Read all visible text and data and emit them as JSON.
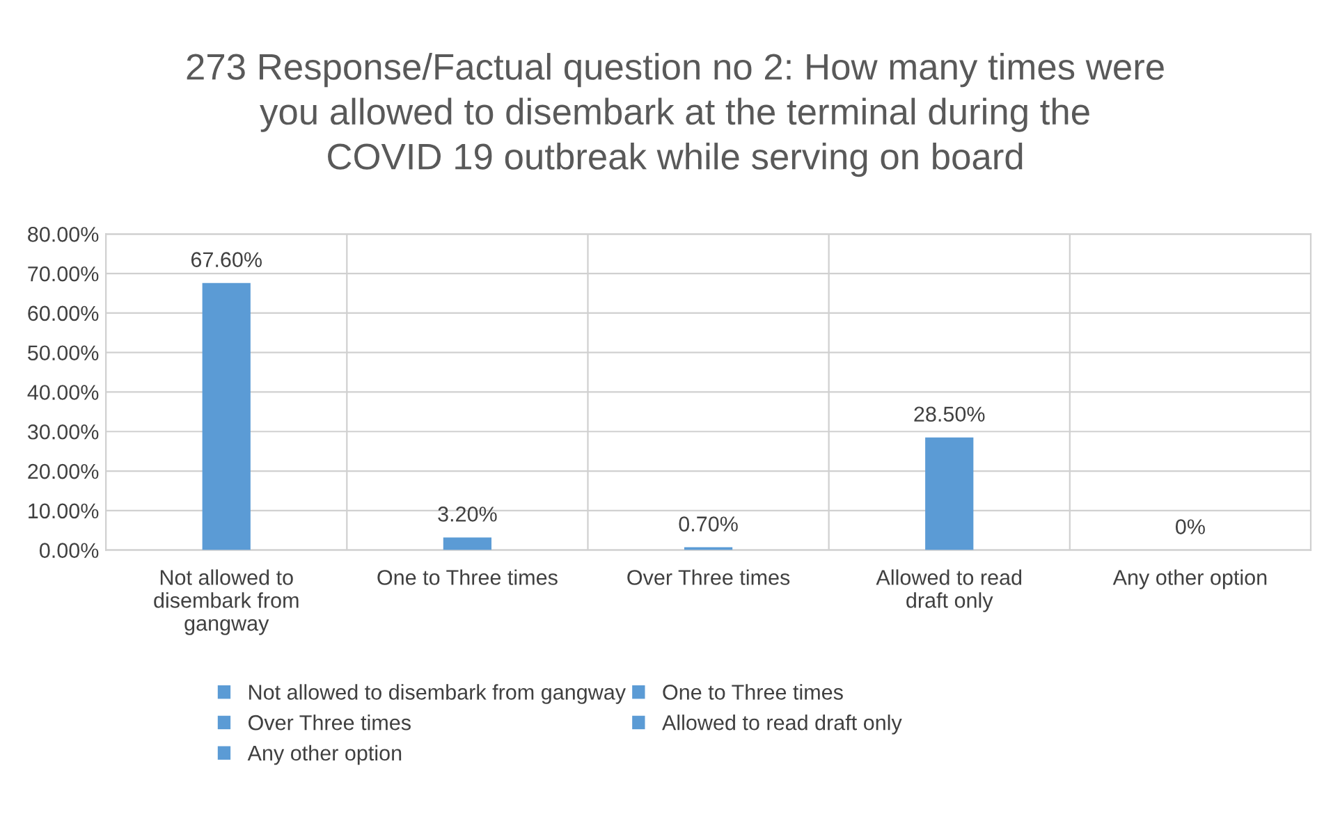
{
  "chart_data": {
    "type": "bar",
    "title": "273 Response/Factual question no 2: How many times were you allowed to disembark at the terminal during the COVID 19 outbreak while serving on board",
    "categories": [
      "Not allowed to disembark from gangway",
      "One to Three times",
      "Over Three times",
      "Allowed to read draft only",
      "Any other option"
    ],
    "series": [
      {
        "name": "Not allowed to disembark from gangway",
        "color": "#5b9bd5",
        "values": [
          67.6,
          null,
          null,
          null,
          null
        ],
        "value_labels": [
          "67.60%",
          null,
          null,
          null,
          null
        ]
      },
      {
        "name": "One to Three times",
        "color": "#5b9bd5",
        "values": [
          null,
          3.2,
          null,
          null,
          null
        ],
        "value_labels": [
          null,
          "3.20%",
          null,
          null,
          null
        ]
      },
      {
        "name": "Over Three times",
        "color": "#5b9bd5",
        "values": [
          null,
          null,
          0.7,
          null,
          null
        ],
        "value_labels": [
          null,
          null,
          "0.70%",
          null,
          null
        ]
      },
      {
        "name": "Allowed to read draft only",
        "color": "#5b9bd5",
        "values": [
          null,
          null,
          null,
          28.5,
          null
        ],
        "value_labels": [
          null,
          null,
          null,
          "28.50%",
          null
        ]
      },
      {
        "name": "Any other option",
        "color": "#5b9bd5",
        "values": [
          null,
          null,
          null,
          null,
          0
        ],
        "value_labels": [
          null,
          null,
          null,
          null,
          "0%"
        ]
      }
    ],
    "ylim": [
      0,
      80
    ],
    "yticks": [
      {
        "value": 0,
        "label": "0.00%"
      },
      {
        "value": 10,
        "label": "10.00%"
      },
      {
        "value": 20,
        "label": "20.00%"
      },
      {
        "value": 30,
        "label": "30.00%"
      },
      {
        "value": 40,
        "label": "40.00%"
      },
      {
        "value": 50,
        "label": "50.00%"
      },
      {
        "value": 60,
        "label": "60.00%"
      },
      {
        "value": 70,
        "label": "70.00%"
      },
      {
        "value": 80,
        "label": "80.00%"
      }
    ],
    "grid": true,
    "legend": "bottom"
  }
}
